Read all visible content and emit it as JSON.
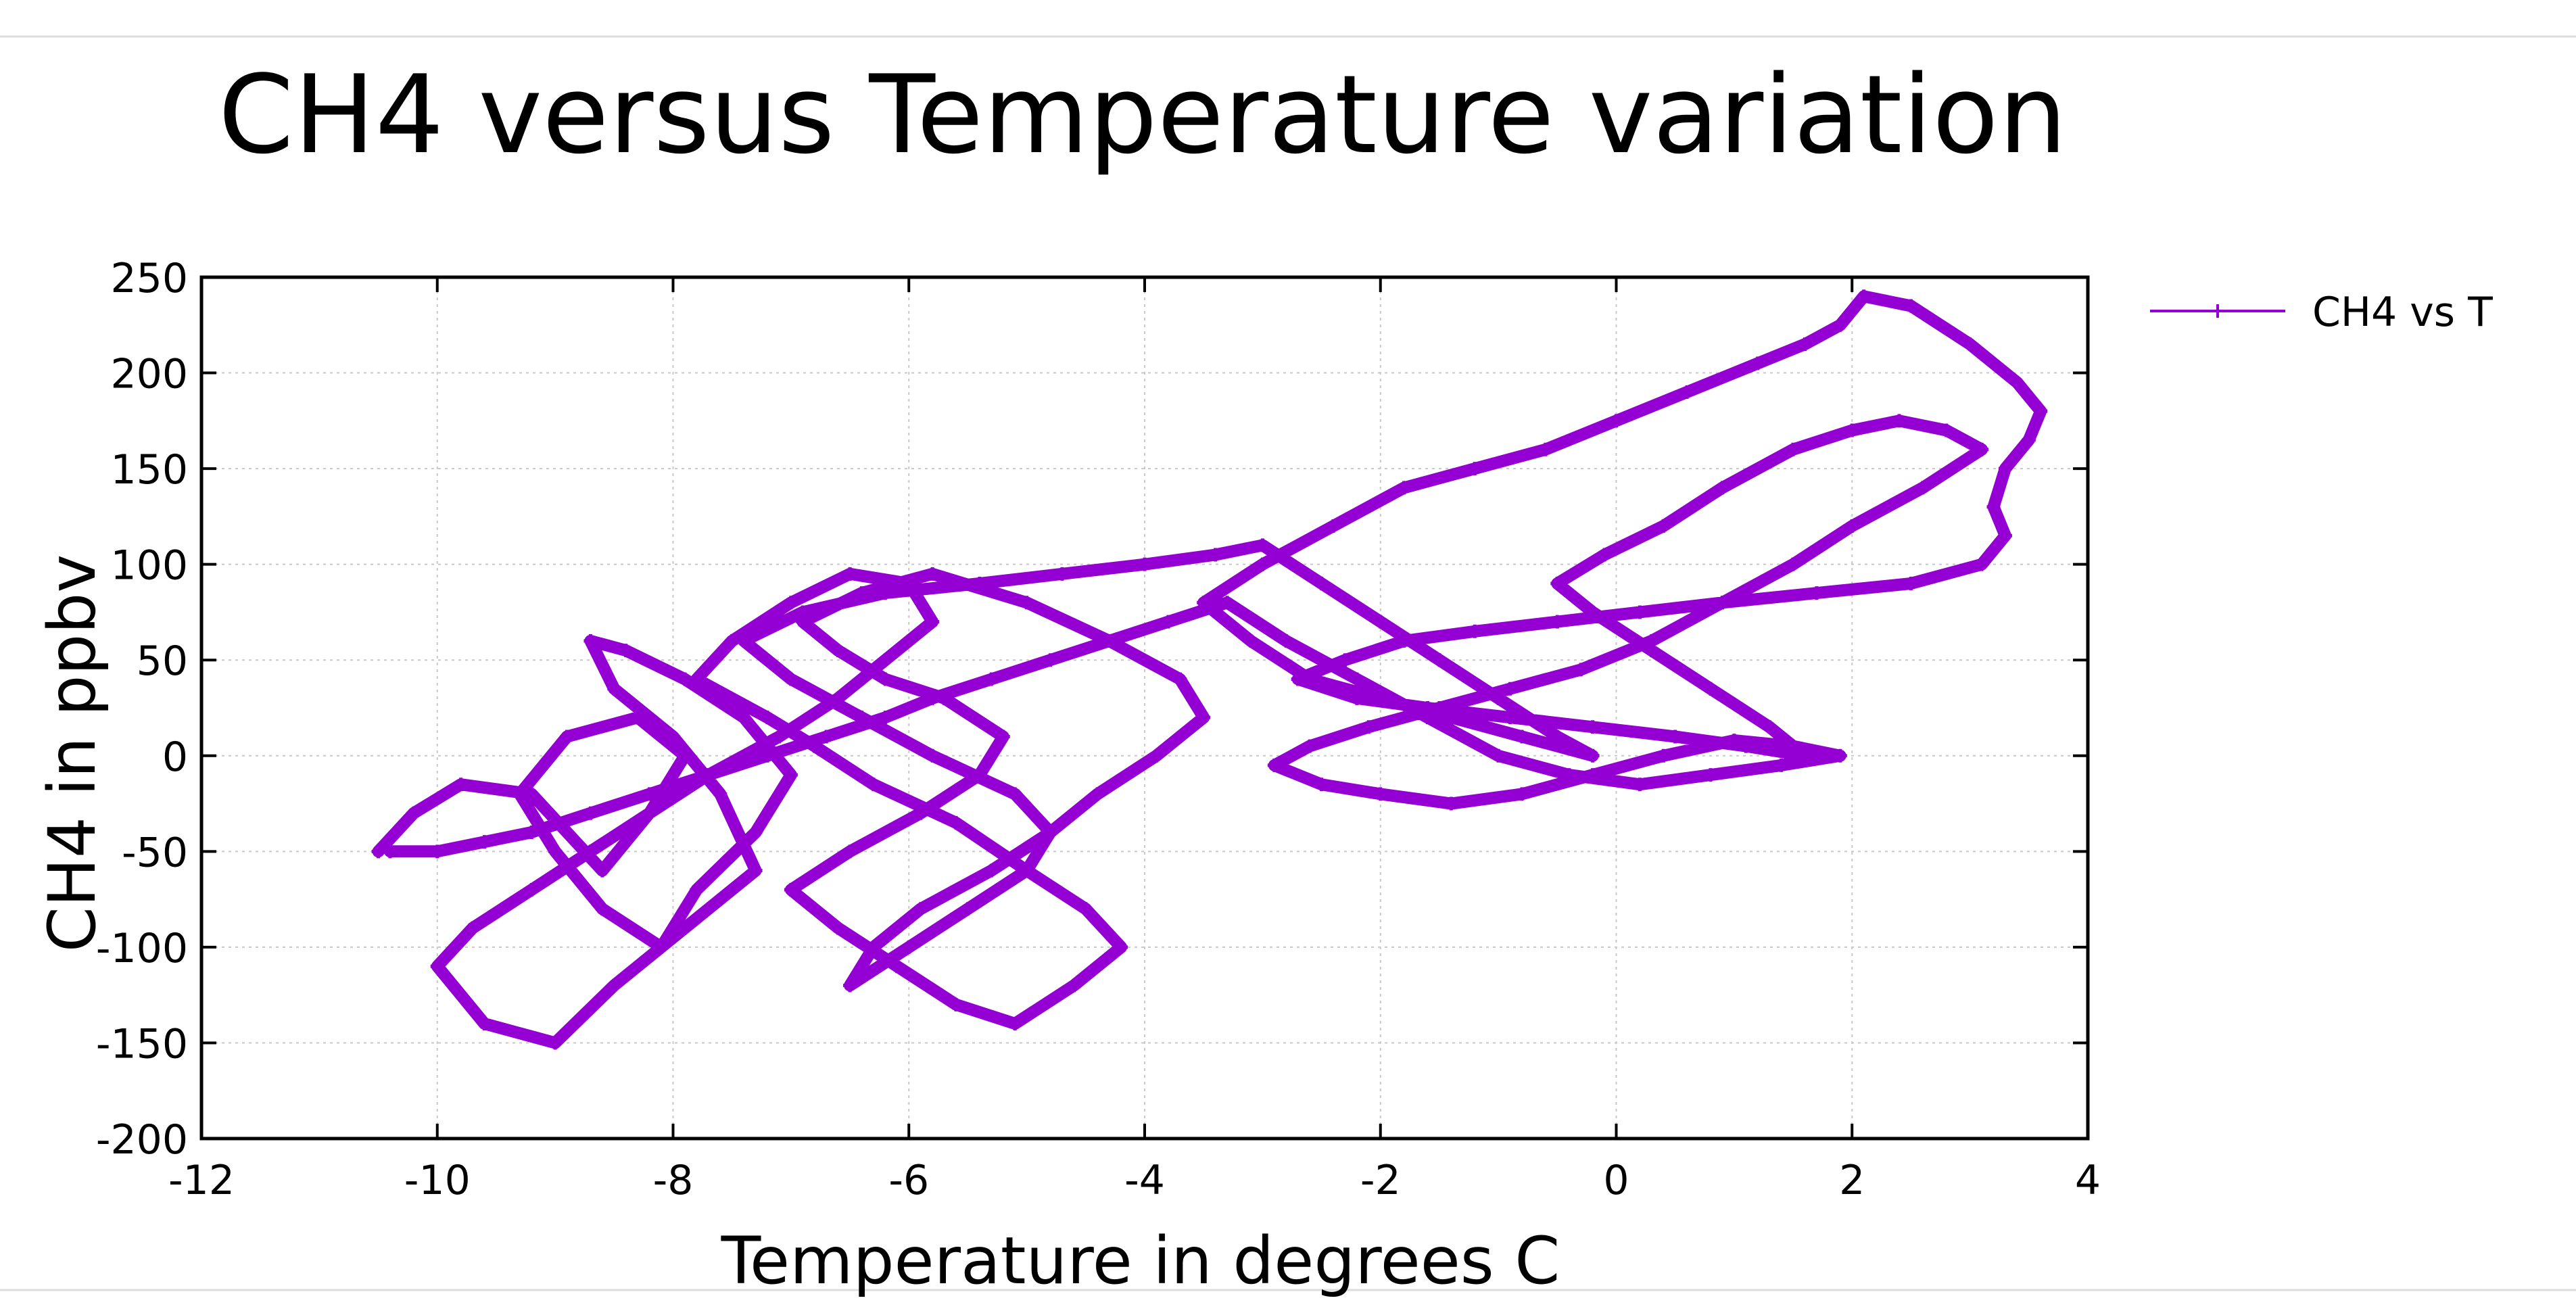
{
  "colors": {
    "series": "#9400d3",
    "grid": "#c8c8c8",
    "frame": "#000000",
    "separator": "#dddddd"
  },
  "chart_data": {
    "type": "line",
    "title": "CH4 versus Temperature variation",
    "xlabel": "Temperature in degrees C",
    "ylabel": "CH4 in ppbv",
    "xlim": [
      -12,
      4
    ],
    "ylim": [
      -200,
      250
    ],
    "xticks": [
      -12,
      -10,
      -8,
      -6,
      -4,
      -2,
      0,
      2,
      4
    ],
    "yticks": [
      -200,
      -150,
      -100,
      -50,
      0,
      50,
      100,
      150,
      200,
      250
    ],
    "xtick_labels": [
      "-12",
      "-10",
      "-8",
      "-6",
      "-4",
      "-2",
      "0",
      "2",
      "4"
    ],
    "ytick_labels": [
      "-200",
      "-150",
      "-100",
      "-50",
      "0",
      "50",
      "100",
      "150",
      "200",
      "250"
    ],
    "grid": true,
    "legend_position": "outside-top-right",
    "series": [
      {
        "name": "CH4 vs T",
        "marker": "plus",
        "x": [
          -10.5,
          -10.2,
          -9.8,
          -9.2,
          -8.9,
          -8.6,
          -8.2,
          -7.9,
          -8.3,
          -8.9,
          -9.3,
          -9.0,
          -8.6,
          -8.1,
          -7.8,
          -7.3,
          -7.0,
          -7.4,
          -7.9,
          -8.4,
          -8.7,
          -8.5,
          -8.0,
          -7.6,
          -7.3,
          -7.9,
          -8.5,
          -9.0,
          -9.6,
          -10.0,
          -9.7,
          -9.2,
          -8.7,
          -8.2,
          -7.7,
          -7.1,
          -6.6,
          -6.2,
          -5.8,
          -6.0,
          -6.5,
          -7.0,
          -7.5,
          -7.8,
          -7.2,
          -6.8,
          -6.3,
          -5.6,
          -5.0,
          -4.5,
          -4.2,
          -4.6,
          -5.1,
          -5.6,
          -6.1,
          -6.6,
          -7.0,
          -6.5,
          -5.9,
          -5.4,
          -5.2,
          -5.7,
          -6.2,
          -6.6,
          -6.9,
          -6.4,
          -5.8,
          -5.0,
          -4.3,
          -3.7,
          -3.5,
          -3.9,
          -4.4,
          -4.8,
          -5.3,
          -5.9,
          -6.3,
          -6.5,
          -6.0,
          -5.5,
          -5.0,
          -4.8,
          -5.1,
          -5.8,
          -6.4,
          -7.0,
          -7.4,
          -6.9,
          -6.2,
          -5.4,
          -4.7,
          -4.0,
          -3.4,
          -3.0,
          -2.5,
          -2.0,
          -1.5,
          -1.0,
          -0.5,
          -0.2,
          -0.8,
          -1.4,
          -2.0,
          -2.6,
          -3.1,
          -3.5,
          -3.0,
          -2.4,
          -1.8,
          -1.2,
          -0.6,
          0.0,
          0.6,
          1.2,
          1.6,
          1.9,
          2.1,
          2.5,
          3.0,
          3.4,
          3.6,
          3.5,
          3.3,
          3.2,
          3.3,
          3.1,
          2.5,
          1.7,
          0.9,
          0.2,
          -0.5,
          -1.2,
          -1.8,
          -2.3,
          -2.7,
          -2.2,
          -1.6,
          -0.9,
          -0.2,
          0.5,
          1.1,
          1.6,
          1.3,
          0.8,
          0.3,
          -0.2,
          -0.5,
          -0.1,
          0.4,
          0.9,
          1.5,
          2.0,
          2.4,
          2.8,
          3.1,
          2.6,
          2.0,
          1.5,
          0.9,
          0.3,
          -0.3,
          -0.9,
          -1.5,
          -2.1,
          -2.6,
          -2.9,
          -2.5,
          -2.0,
          -1.4,
          -0.8,
          -0.2,
          0.4,
          1.0,
          1.5,
          1.9,
          1.4,
          0.8,
          0.2,
          -0.4,
          -1.0,
          -1.6,
          -2.2,
          -2.8,
          -3.3,
          -3.8,
          -4.3,
          -4.8,
          -5.3,
          -5.8,
          -6.2,
          -6.7,
          -7.2,
          -7.7,
          -8.2,
          -8.7,
          -9.2,
          -9.6,
          -10.0,
          -10.4
        ],
        "y": [
          -50,
          -30,
          -15,
          -20,
          -40,
          -60,
          -30,
          0,
          20,
          10,
          -20,
          -50,
          -80,
          -100,
          -70,
          -40,
          -10,
          20,
          40,
          55,
          60,
          35,
          10,
          -20,
          -60,
          -90,
          -120,
          -150,
          -140,
          -110,
          -90,
          -70,
          -50,
          -30,
          -10,
          10,
          30,
          50,
          70,
          90,
          95,
          80,
          60,
          40,
          20,
          5,
          -15,
          -35,
          -60,
          -80,
          -100,
          -120,
          -140,
          -130,
          -110,
          -90,
          -70,
          -50,
          -30,
          -10,
          10,
          30,
          40,
          55,
          70,
          85,
          95,
          80,
          60,
          40,
          20,
          0,
          -20,
          -40,
          -60,
          -80,
          -100,
          -120,
          -100,
          -80,
          -60,
          -40,
          -20,
          0,
          20,
          40,
          60,
          75,
          85,
          90,
          95,
          100,
          105,
          110,
          90,
          70,
          50,
          30,
          10,
          0,
          10,
          20,
          30,
          40,
          60,
          80,
          100,
          120,
          140,
          150,
          160,
          175,
          190,
          205,
          215,
          225,
          240,
          235,
          215,
          195,
          180,
          165,
          150,
          130,
          115,
          100,
          90,
          85,
          80,
          75,
          70,
          65,
          60,
          50,
          40,
          30,
          25,
          20,
          15,
          10,
          5,
          0,
          15,
          35,
          55,
          75,
          90,
          105,
          120,
          140,
          160,
          170,
          175,
          170,
          160,
          140,
          120,
          100,
          80,
          60,
          45,
          35,
          25,
          15,
          5,
          -5,
          -15,
          -20,
          -25,
          -20,
          -10,
          0,
          8,
          5,
          0,
          -5,
          -10,
          -15,
          -10,
          0,
          20,
          40,
          60,
          80,
          70,
          60,
          50,
          40,
          30,
          20,
          10,
          0,
          -10,
          -20,
          -30,
          -40,
          -45,
          -50,
          -50
        ]
      }
    ]
  }
}
